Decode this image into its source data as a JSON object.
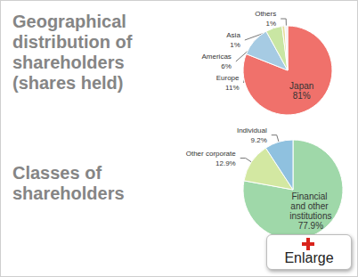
{
  "chart_data": [
    {
      "type": "pie",
      "title": "Geographical distribution of shareholders (shares held)",
      "categories": [
        "Japan",
        "Europe",
        "Americas",
        "Asia",
        "Others"
      ],
      "values": [
        81,
        11,
        6,
        1,
        1
      ],
      "value_labels": [
        "81%",
        "11%",
        "6%",
        "1%",
        "1%"
      ],
      "colors": [
        "#f0716b",
        "#a6cbe3",
        "#c9e6a3",
        "#e6dc9a",
        "#f2f2f2"
      ],
      "data_labels": true
    },
    {
      "type": "pie",
      "title": "Classes of shareholders",
      "categories": [
        "Financial and other institutions",
        "Other corporate",
        "Individual"
      ],
      "values": [
        77.9,
        12.9,
        9.2
      ],
      "value_labels": [
        "77.9%",
        "12.9%",
        "9.2%"
      ],
      "colors": [
        "#9fd8a9",
        "#d3e8a2",
        "#8fc1df"
      ],
      "data_labels": true
    }
  ],
  "enlarge_button": "Enlarge"
}
